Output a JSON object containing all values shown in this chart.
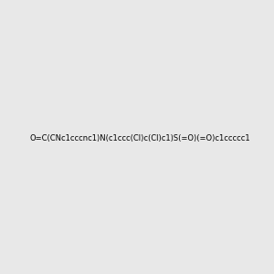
{
  "smiles": "O=C(CNc1cccnc1)N(c1ccc(Cl)c(Cl)c1)S(=O)(=O)c1ccccc1",
  "title": "",
  "bg_color": "#e8e8e8",
  "figsize": [
    3.0,
    3.0
  ],
  "dpi": 100
}
